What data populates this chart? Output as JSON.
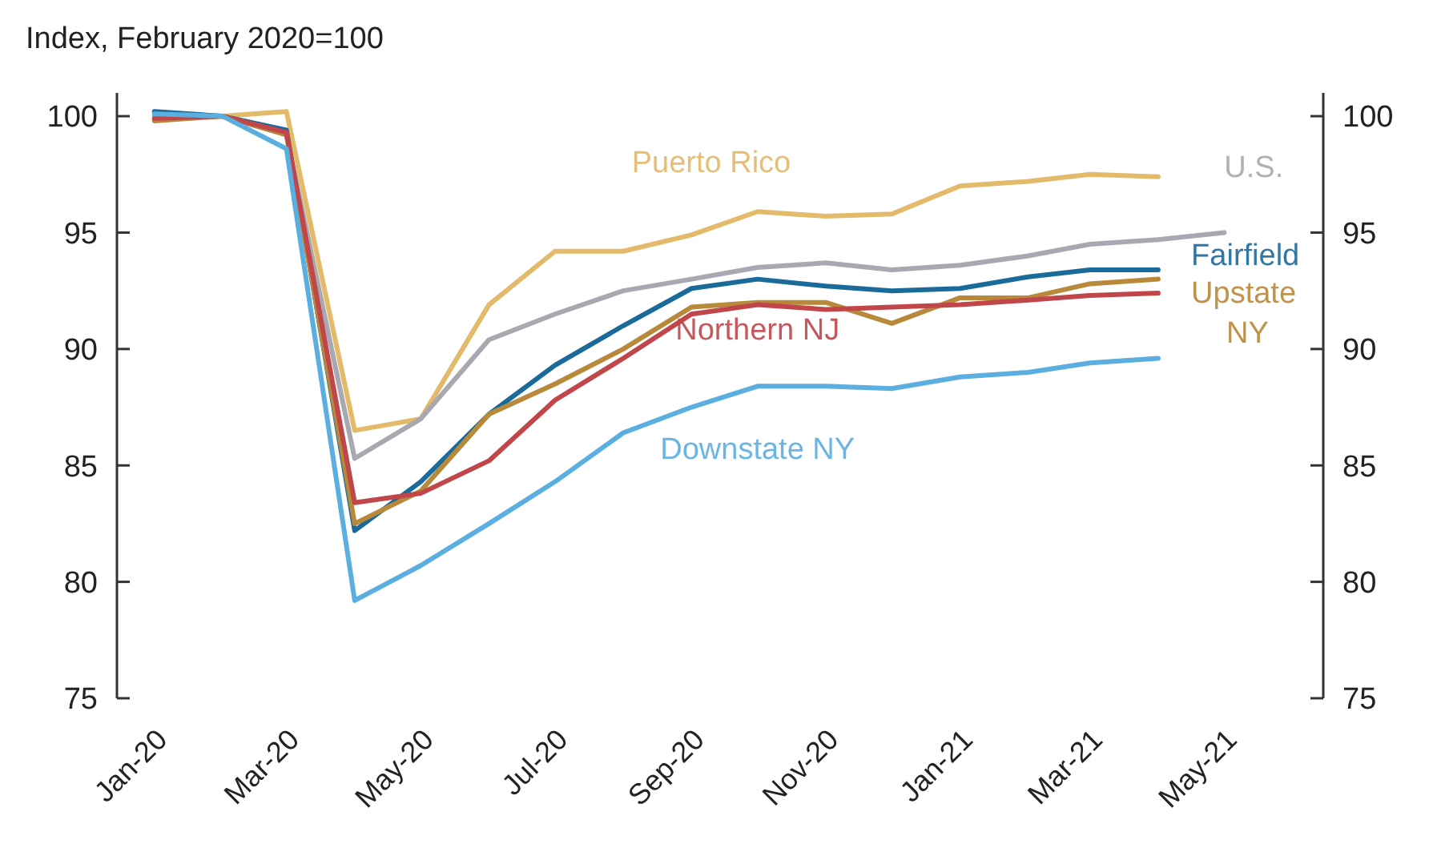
{
  "chart_data": {
    "type": "line",
    "ylabel": "Index, February 2020=100",
    "x": [
      "2020-01",
      "2020-02",
      "2020-03",
      "2020-04",
      "2020-05",
      "2020-06",
      "2020-07",
      "2020-08",
      "2020-09",
      "2020-10",
      "2020-11",
      "2020-12",
      "2021-01",
      "2021-02",
      "2021-03",
      "2021-04",
      "2021-05"
    ],
    "xlim": [
      "2019-12-15",
      "2021-06-15"
    ],
    "xticks": [
      {
        "value": "2020-01",
        "label": "Jan-20"
      },
      {
        "value": "2020-03",
        "label": "Mar-20"
      },
      {
        "value": "2020-05",
        "label": "May-20"
      },
      {
        "value": "2020-07",
        "label": "Jul-20"
      },
      {
        "value": "2020-09",
        "label": "Sep-20"
      },
      {
        "value": "2020-11",
        "label": "Nov-20"
      },
      {
        "value": "2021-01",
        "label": "Jan-21"
      },
      {
        "value": "2021-03",
        "label": "Mar-21"
      },
      {
        "value": "2021-05",
        "label": "May-21"
      }
    ],
    "ylim": [
      75,
      101
    ],
    "yticks": [
      75,
      80,
      85,
      90,
      95,
      100
    ],
    "y2lim": [
      75,
      101
    ],
    "y2ticks": [
      75,
      80,
      85,
      90,
      95,
      100
    ],
    "grid": false,
    "marker": "none",
    "line_style": "solid",
    "series": [
      {
        "name": "Puerto Rico",
        "color": "#e3b96a",
        "values": [
          99.9,
          100,
          100.2,
          86.5,
          87.0,
          91.9,
          94.2,
          94.2,
          94.9,
          95.9,
          95.7,
          95.8,
          97.0,
          97.2,
          97.5,
          97.4,
          null
        ]
      },
      {
        "name": "U.S.",
        "color": "#a8a8b0",
        "values": [
          100,
          100,
          99.2,
          85.3,
          87.0,
          90.4,
          91.5,
          92.5,
          93.0,
          93.5,
          93.7,
          93.4,
          93.6,
          94.0,
          94.5,
          94.7,
          95.0
        ]
      },
      {
        "name": "Fairfield",
        "color": "#1a6a9a",
        "values": [
          100.2,
          100,
          99.4,
          82.2,
          84.3,
          87.2,
          89.3,
          91.0,
          92.6,
          93.0,
          92.7,
          92.5,
          92.6,
          93.1,
          93.4,
          93.4,
          null
        ]
      },
      {
        "name": "Upstate NY",
        "color": "#b8893a",
        "values": [
          99.8,
          100,
          99.2,
          82.5,
          83.9,
          87.2,
          88.5,
          90.0,
          91.8,
          92.0,
          92.0,
          91.1,
          92.2,
          92.2,
          92.8,
          93.0,
          null
        ]
      },
      {
        "name": "Northern NJ",
        "color": "#c0464a",
        "values": [
          99.9,
          100,
          99.3,
          83.4,
          83.8,
          85.2,
          87.8,
          89.6,
          91.5,
          91.9,
          91.7,
          91.8,
          91.9,
          92.1,
          92.3,
          92.4,
          null
        ]
      },
      {
        "name": "Downstate NY",
        "color": "#5aaee0",
        "values": [
          100.1,
          100,
          98.6,
          79.2,
          80.7,
          82.5,
          84.3,
          86.4,
          87.5,
          88.4,
          88.4,
          88.3,
          88.8,
          89.0,
          89.4,
          89.6,
          null
        ]
      }
    ]
  }
}
